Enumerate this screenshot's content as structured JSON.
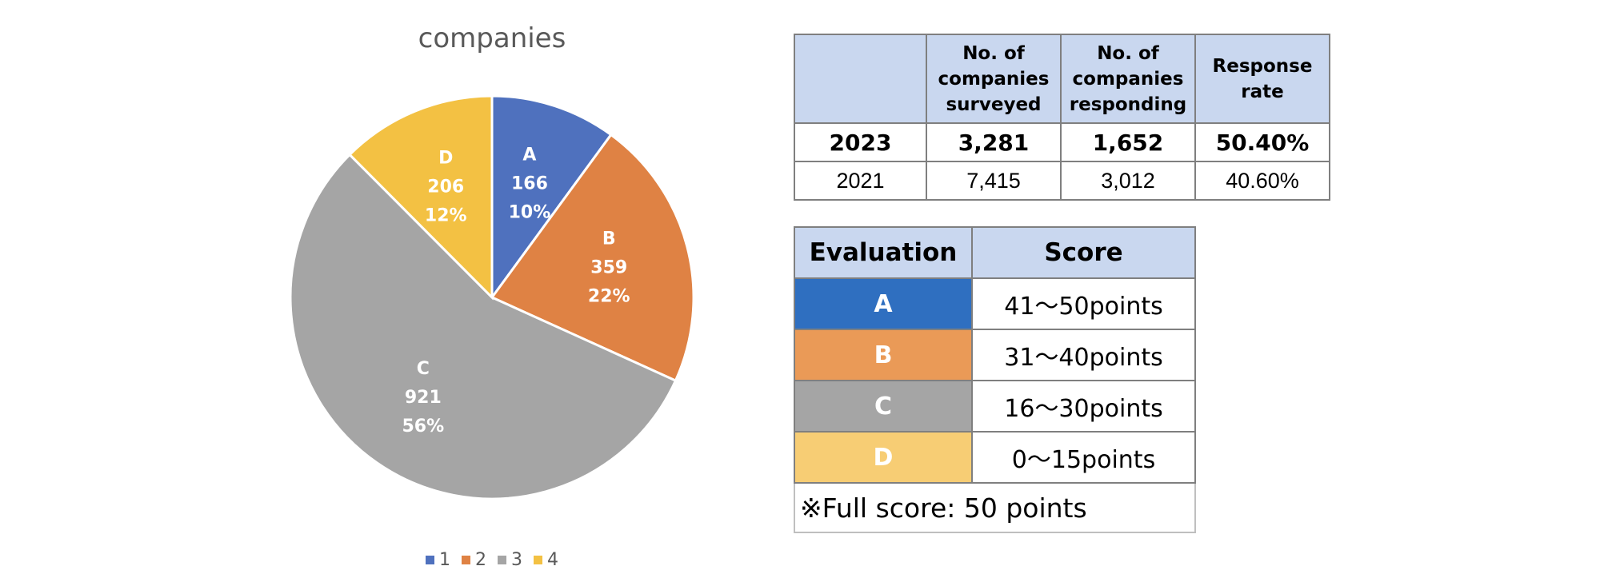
{
  "chart_data": {
    "type": "pie",
    "title": "companies",
    "slices": [
      {
        "legend": "1",
        "label": "A",
        "value": 166,
        "percent": "10%",
        "color": "#4f71be"
      },
      {
        "legend": "2",
        "label": "B",
        "value": 359,
        "percent": "22%",
        "color": "#df8244"
      },
      {
        "legend": "3",
        "label": "C",
        "value": 921,
        "percent": "56%",
        "color": "#a5a5a5"
      },
      {
        "legend": "4",
        "label": "D",
        "value": 206,
        "percent": "12%",
        "color": "#f3c143"
      }
    ],
    "legend_position": "bottom"
  },
  "survey_table": {
    "headers": [
      "",
      "No. of companies surveyed",
      "No. of companies responding",
      "Response rate"
    ],
    "rows": [
      {
        "year": "2023",
        "surveyed": "3,281",
        "responding": "1,652",
        "rate": "50.40%"
      },
      {
        "year": "2021",
        "surveyed": "7,415",
        "responding": "3,012",
        "rate": "40.60%"
      }
    ]
  },
  "score_table": {
    "headers": [
      "Evaluation",
      "Score"
    ],
    "rows": [
      {
        "grade": "A",
        "range": "41～50points",
        "color": "#2f6fc0"
      },
      {
        "grade": "B",
        "range": "31～40points",
        "color": "#ea9a57"
      },
      {
        "grade": "C",
        "range": "16～30points",
        "color": "#a5a5a5"
      },
      {
        "grade": "D",
        "range": "0～15points",
        "color": "#f7cd74"
      }
    ],
    "note": "※Full score: 50 points"
  }
}
